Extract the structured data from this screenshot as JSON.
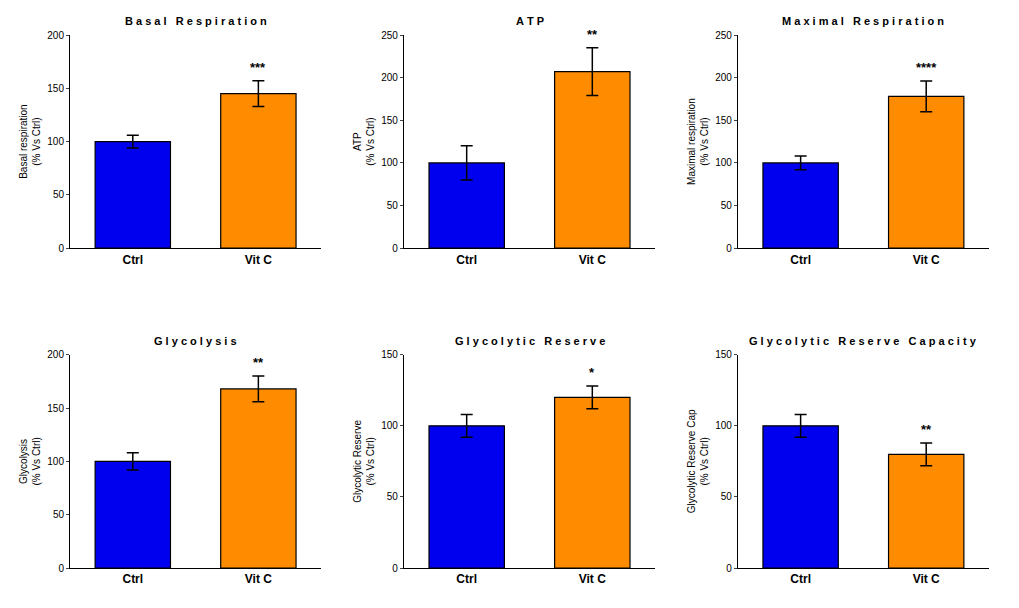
{
  "chart_data": [
    {
      "type": "bar",
      "title": "B a s a l   R e s p i r a t i o n",
      "y_label": "Basal respiration\n(% Vs Ctrl)",
      "categories": [
        "Ctrl",
        "Vit C"
      ],
      "values": [
        100,
        145
      ],
      "errors": [
        6,
        12
      ],
      "colors": [
        "#0000EE",
        "#FF8C00"
      ],
      "ylim": [
        0,
        200
      ],
      "yticks": [
        0,
        50,
        100,
        150,
        200
      ],
      "grid": false,
      "annotations": [
        {
          "category": "Vit C",
          "text": "***"
        }
      ]
    },
    {
      "type": "bar",
      "title": "A T P",
      "y_label": "ATP\n(% Vs Ctrl)",
      "categories": [
        "Ctrl",
        "Vit C"
      ],
      "values": [
        100,
        207
      ],
      "errors": [
        20,
        28
      ],
      "colors": [
        "#0000EE",
        "#FF8C00"
      ],
      "ylim": [
        0,
        250
      ],
      "yticks": [
        0,
        50,
        100,
        150,
        200,
        250
      ],
      "grid": false,
      "annotations": [
        {
          "category": "Vit C",
          "text": "**"
        }
      ]
    },
    {
      "type": "bar",
      "title": "M a x i m a l   R e s p i r a t i o n",
      "y_label": "Maximal respiration\n(% Vs Ctrl)",
      "categories": [
        "Ctrl",
        "Vit C"
      ],
      "values": [
        100,
        178
      ],
      "errors": [
        8,
        18
      ],
      "colors": [
        "#0000EE",
        "#FF8C00"
      ],
      "ylim": [
        0,
        250
      ],
      "yticks": [
        0,
        50,
        100,
        150,
        200,
        250
      ],
      "grid": false,
      "annotations": [
        {
          "category": "Vit C",
          "text": "****"
        }
      ]
    },
    {
      "type": "bar",
      "title": "G l y c o l y s i s",
      "y_label": "Glycolysis\n(% Vs Ctrl)",
      "categories": [
        "Ctrl",
        "Vit C"
      ],
      "values": [
        100,
        168
      ],
      "errors": [
        8,
        12
      ],
      "colors": [
        "#0000EE",
        "#FF8C00"
      ],
      "ylim": [
        0,
        200
      ],
      "yticks": [
        0,
        50,
        100,
        150,
        200
      ],
      "grid": false,
      "annotations": [
        {
          "category": "Vit C",
          "text": "**"
        }
      ]
    },
    {
      "type": "bar",
      "title": "G l y c o l y t i c   R e s e r v e",
      "y_label": "Glycolytic Reserve\n(% Vs Ctrl)",
      "categories": [
        "Ctrl",
        "Vit C"
      ],
      "values": [
        100,
        120
      ],
      "errors": [
        8,
        8
      ],
      "colors": [
        "#0000EE",
        "#FF8C00"
      ],
      "ylim": [
        0,
        150
      ],
      "yticks": [
        0,
        50,
        100,
        150
      ],
      "grid": false,
      "annotations": [
        {
          "category": "Vit C",
          "text": "*"
        }
      ]
    },
    {
      "type": "bar",
      "title": "G l y c o l y t i c   R e s e r v e   C a p a c i t y",
      "y_label": "Glycolytic Reserve Cap\n(% Vs Ctrl)",
      "categories": [
        "Ctrl",
        "Vit C"
      ],
      "values": [
        100,
        80
      ],
      "errors": [
        8,
        8
      ],
      "colors": [
        "#0000EE",
        "#FF8C00"
      ],
      "ylim": [
        0,
        150
      ],
      "yticks": [
        0,
        50,
        100,
        150
      ],
      "grid": false,
      "annotations": [
        {
          "category": "Vit C",
          "text": "**"
        }
      ]
    }
  ]
}
